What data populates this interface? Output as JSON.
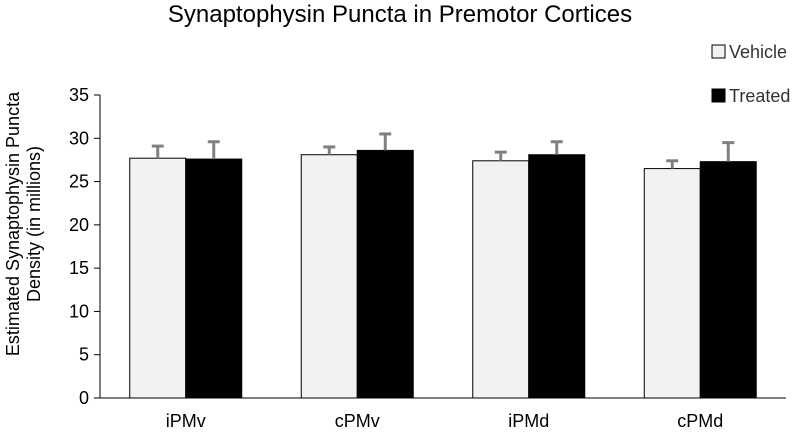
{
  "chart_data": {
    "type": "bar",
    "title": "Synaptophysin Puncta in Premotor Cortices",
    "xlabel": "",
    "ylabel_lines": [
      "Estimated Synaptophysin Puncta",
      "Density (in millions)"
    ],
    "categories": [
      "iPMv",
      "cPMv",
      "iPMd",
      "cPMd"
    ],
    "ylim": [
      0,
      35
    ],
    "yticks": [
      0,
      5,
      10,
      15,
      20,
      25,
      30,
      35
    ],
    "grid": false,
    "legend_position": "top-right",
    "series": [
      {
        "name": "Vehicle",
        "values": [
          27.7,
          28.1,
          27.4,
          26.5
        ],
        "errors": [
          1.4,
          0.9,
          1.0,
          0.9
        ],
        "fill": "#f2f2f2",
        "stroke": "#000000"
      },
      {
        "name": "Treated",
        "values": [
          27.6,
          28.6,
          28.1,
          27.3
        ],
        "errors": [
          2.0,
          1.9,
          1.5,
          2.2
        ],
        "fill": "#000000",
        "stroke": "#000000"
      }
    ],
    "error_bar_color": "#808080",
    "axis_color": "#000000"
  }
}
